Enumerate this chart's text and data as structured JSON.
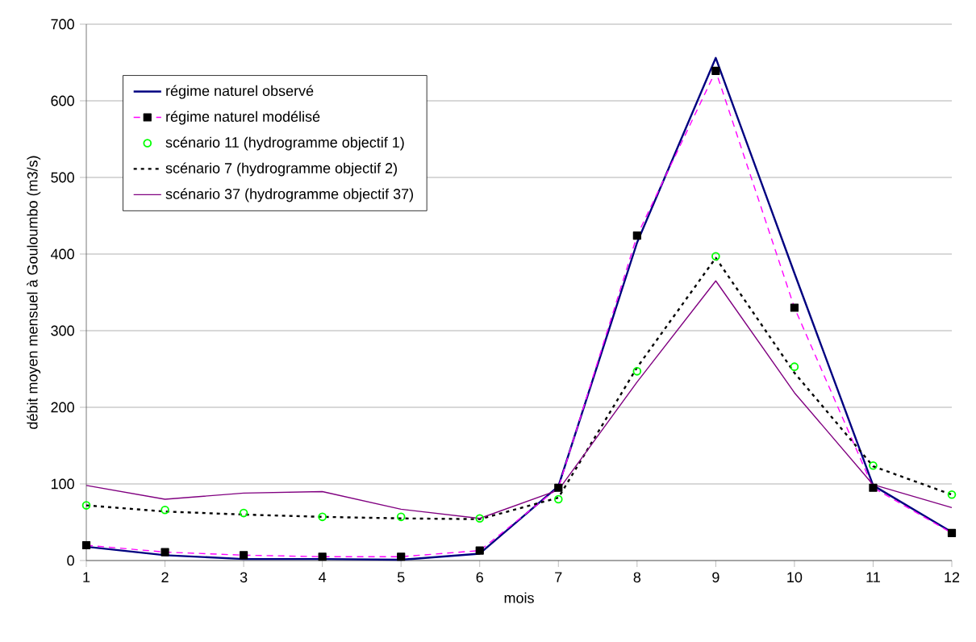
{
  "chart_data": {
    "type": "line",
    "xlabel": "mois",
    "ylabel": "débit moyen mensuel à Gouloumbo (m3/s)",
    "x": [
      1,
      2,
      3,
      4,
      5,
      6,
      7,
      8,
      9,
      10,
      11,
      12
    ],
    "series": [
      {
        "name": "régime naturel observé",
        "color": "#000080",
        "line_style": "solid",
        "marker": "none",
        "values": [
          18,
          7,
          2,
          2,
          1,
          9,
          97,
          415,
          656,
          375,
          98,
          37
        ]
      },
      {
        "name": "régime naturel modélisé",
        "color": "#ff00ff",
        "line_style": "dashed",
        "marker": "square",
        "values": [
          20,
          11,
          7,
          5,
          5,
          13,
          95,
          424,
          639,
          330,
          95,
          36
        ]
      },
      {
        "name": "scénario 11 (hydrogramme objectif 1)",
        "type": "scatter",
        "color": "#00ff00",
        "marker": "circle",
        "values": [
          72,
          66,
          62,
          57,
          57,
          55,
          80,
          247,
          397,
          253,
          124,
          86
        ]
      },
      {
        "name": "scénario 7 (hydrogramme objectif 2)",
        "color": "#000000",
        "line_style": "dotted",
        "marker": "none",
        "values": [
          72,
          64,
          60,
          57,
          55,
          54,
          82,
          252,
          395,
          245,
          123,
          86
        ]
      },
      {
        "name": "scénario 37 (hydrogramme objectif 37)",
        "color": "#800080",
        "line_style": "solid",
        "marker": "none",
        "values": [
          98,
          80,
          88,
          90,
          67,
          55,
          92,
          233,
          365,
          219,
          99,
          69
        ]
      }
    ],
    "xlim": [
      1,
      12
    ],
    "xticks": [
      1,
      2,
      3,
      4,
      5,
      6,
      7,
      8,
      9,
      10,
      11,
      12
    ],
    "ylim": [
      0,
      700
    ],
    "yticks": [
      0,
      100,
      200,
      300,
      400,
      500,
      600,
      700
    ],
    "grid": "y",
    "legend": "top left"
  }
}
